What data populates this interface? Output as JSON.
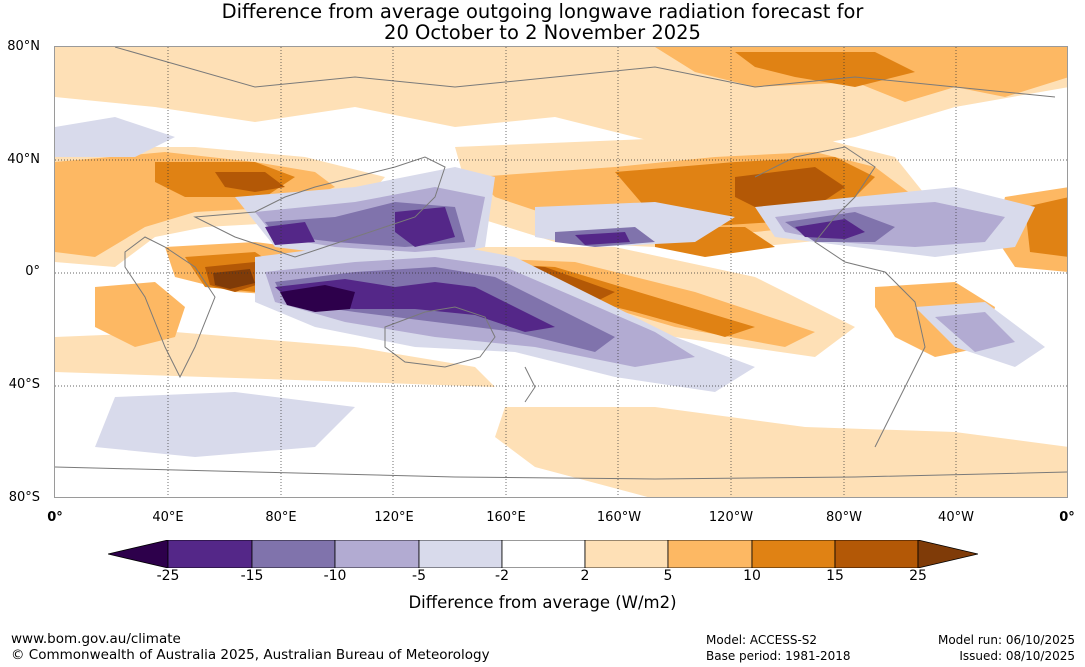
{
  "title": {
    "line1": "Difference from average outgoing longwave radiation forecast for",
    "line2": "20 October to 2 November 2025"
  },
  "axes": {
    "lat_labels": [
      "80°N",
      "40°N",
      "0°",
      "40°S",
      "80°S"
    ],
    "lon_labels": [
      "0°",
      "40°E",
      "80°E",
      "120°E",
      "160°E",
      "160°W",
      "120°W",
      "80°W",
      "40°W",
      "0°"
    ]
  },
  "colorbar": {
    "ticks": [
      "-25",
      "-15",
      "-10",
      "-5",
      "-2",
      "2",
      "5",
      "10",
      "15",
      "25"
    ],
    "colors": [
      "#2d004b",
      "#542788",
      "#8073ac",
      "#b2abd2",
      "#d8daeb",
      "#ffffff",
      "#fee0b6",
      "#fdb863",
      "#e08214",
      "#b35806",
      "#7f3b08"
    ],
    "label": "Difference from average (W/m2)"
  },
  "footer": {
    "website": "www.bom.gov.au/climate",
    "copyright": "© Commonwealth of Australia 2025, Australian Bureau of Meteorology",
    "model": "Model: ACCESS-S2",
    "base_period": "Base period: 1981-2018",
    "model_run": "Model run: 06/10/2025",
    "issued": "Issued: 08/10/2025"
  }
}
